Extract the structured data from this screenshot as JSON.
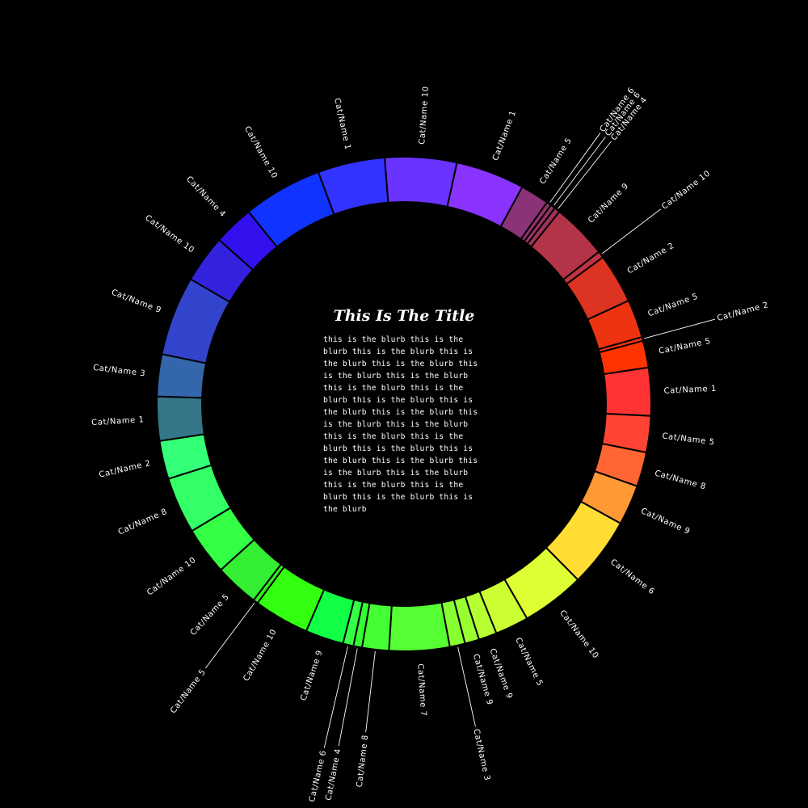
{
  "title": "This Is The Title",
  "blurb": "this is the blurb this is the blurb this is the blurb this is the blurb this is the blurb this is the blurb this is the blurb this is the blurb this is the blurb this is the blurb this is the blurb this is the blurb this is the blurb this is the blurb this is the blurb this is the blurb this is the blurb this is the blurb this is the blurb this is the blurb this is the blurb this is the blurb this is the blurb this is the blurb this is the blurb",
  "chart_data": {
    "type": "pie",
    "variant": "donut",
    "background": "#000000",
    "slices": [
      {
        "label": "Cat/Name 10",
        "value": 7.5,
        "color": "#6a33ff"
      },
      {
        "label": "Cat/Name 1",
        "value": 7.2,
        "color": "#8a33ff"
      },
      {
        "label": "Cat/Name 5",
        "value": 3.0,
        "color": "#8a3377"
      },
      {
        "label": "Cat/Name 6",
        "value": 0.5,
        "color": "#8f3366"
      },
      {
        "label": "Cat/Name 6",
        "value": 0.5,
        "color": "#963360"
      },
      {
        "label": "Cat/Name 4",
        "value": 0.6,
        "color": "#9c335a"
      },
      {
        "label": "Cat/Name 9",
        "value": 5.8,
        "color": "#b33348"
      },
      {
        "label": "Cat/Name 10",
        "value": 0.7,
        "color": "#c03340"
      },
      {
        "label": "Cat/Name 2",
        "value": 5.2,
        "color": "#dd3322"
      },
      {
        "label": "Cat/Name 5",
        "value": 4.0,
        "color": "#ee3311"
      },
      {
        "label": "Cat/Name 2",
        "value": 0.4,
        "color": "#ff3311"
      },
      {
        "label": "Cat/Name 5",
        "value": 2.8,
        "color": "#ff3300"
      },
      {
        "label": "Cat/Name 1",
        "value": 5.0,
        "color": "#ff3333"
      },
      {
        "label": "Cat/Name 5",
        "value": 3.8,
        "color": "#ff4433"
      },
      {
        "label": "Cat/Name 8",
        "value": 3.6,
        "color": "#ff6633"
      },
      {
        "label": "Cat/Name 9",
        "value": 4.2,
        "color": "#ff9933"
      },
      {
        "label": "Cat/Name 6",
        "value": 7.3,
        "color": "#ffdd33"
      },
      {
        "label": "Cat/Name 10",
        "value": 6.6,
        "color": "#ddff33"
      },
      {
        "label": "Cat/Name 5",
        "value": 3.5,
        "color": "#ccff33"
      },
      {
        "label": "Cat/Name 9",
        "value": 1.9,
        "color": "#b5ff33"
      },
      {
        "label": "Cat/Name 9",
        "value": 1.5,
        "color": "#99ff33"
      },
      {
        "label": "Cat/Name 3",
        "value": 1.6,
        "color": "#88ff33"
      },
      {
        "label": "Cat/Name 7",
        "value": 6.3,
        "color": "#55ff33"
      },
      {
        "label": "Cat/Name 8",
        "value": 2.8,
        "color": "#44ff33"
      },
      {
        "label": "Cat/Name 4",
        "value": 0.9,
        "color": "#33ff33"
      },
      {
        "label": "Cat/Name 6",
        "value": 1.1,
        "color": "#33ff44"
      },
      {
        "label": "Cat/Name 9",
        "value": 4.0,
        "color": "#11ff44"
      },
      {
        "label": "Cat/Name 10",
        "value": 5.8,
        "color": "#33ff11"
      },
      {
        "label": "Cat/Name 5",
        "value": 0.5,
        "color": "#33ee22"
      },
      {
        "label": "Cat/Name 5",
        "value": 4.6,
        "color": "#33ee33"
      },
      {
        "label": "Cat/Name 10",
        "value": 5.0,
        "color": "#33ff44"
      },
      {
        "label": "Cat/Name 8",
        "value": 5.9,
        "color": "#33ff66"
      },
      {
        "label": "Cat/Name 2",
        "value": 4.0,
        "color": "#33ff77"
      },
      {
        "label": "Cat/Name 1",
        "value": 4.6,
        "color": "#337788"
      },
      {
        "label": "Cat/Name 3",
        "value": 4.4,
        "color": "#3366aa"
      },
      {
        "label": "Cat/Name 9",
        "value": 8.3,
        "color": "#3344cc"
      },
      {
        "label": "Cat/Name 10",
        "value": 5.0,
        "color": "#3322dd"
      },
      {
        "label": "Cat/Name 4",
        "value": 4.2,
        "color": "#3311ee"
      },
      {
        "label": "Cat/Name 10",
        "value": 8.3,
        "color": "#1133ff"
      },
      {
        "label": "Cat/Name 1",
        "value": 7.0,
        "color": "#3333ff"
      }
    ]
  }
}
